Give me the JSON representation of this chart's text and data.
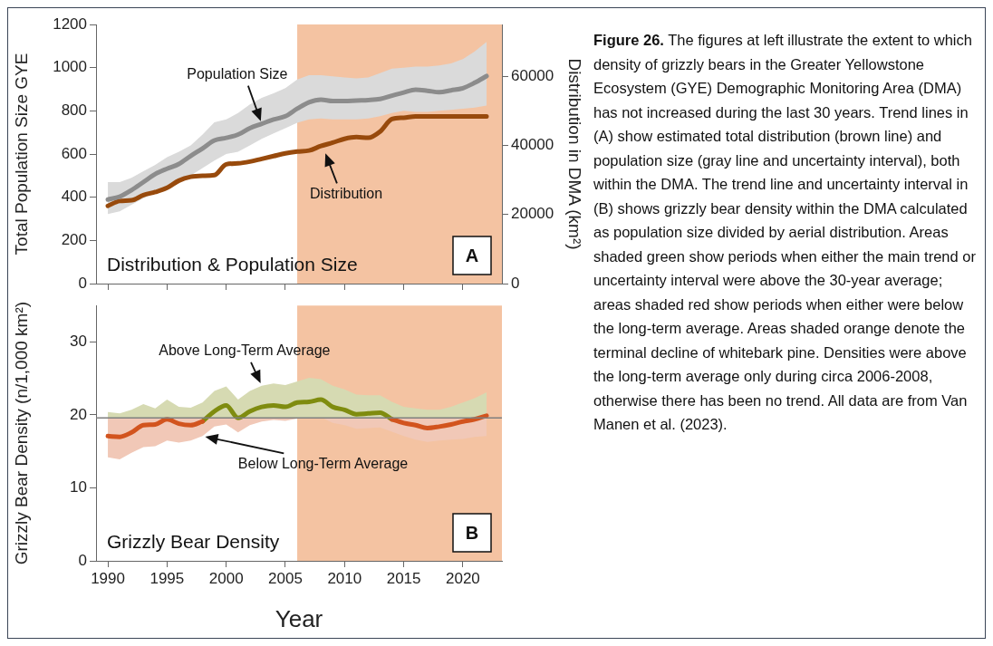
{
  "chart_data": [
    {
      "type": "line",
      "title": "Distribution & Population Size",
      "ylabel": "Total Population Size GYE",
      "y2label": "Distribution in DMA (km²)",
      "x": [
        1990,
        1991,
        1992,
        1993,
        1994,
        1995,
        1996,
        1997,
        1998,
        1999,
        2000,
        2001,
        2002,
        2003,
        2004,
        2005,
        2006,
        2007,
        2008,
        2009,
        2010,
        2011,
        2012,
        2013,
        2014,
        2015,
        2016,
        2017,
        2018,
        2019,
        2020,
        2021,
        2022
      ],
      "xlim": [
        1989,
        2023.3
      ],
      "xticks": [
        1990,
        1995,
        2000,
        2005,
        2010,
        2015,
        2020
      ],
      "ylim": [
        0,
        1200
      ],
      "yticks": [
        0,
        200,
        400,
        600,
        800,
        1000,
        1200
      ],
      "y2lim": [
        0,
        75000
      ],
      "y2ticks": [
        0,
        20000,
        40000,
        60000
      ],
      "tick_labels": "y",
      "series": [
        {
          "color": "#8c8c8c",
          "values": [
            389,
            403,
            433,
            470,
            507,
            532,
            554,
            591,
            626,
            663,
            675,
            690,
            720,
            740,
            760,
            775,
            810,
            840,
            852,
            845,
            845,
            848,
            850,
            855,
            870,
            885,
            898,
            893,
            886,
            895,
            905,
            930,
            961
          ],
          "lower": [
            322,
            335,
            365,
            395,
            425,
            450,
            470,
            500,
            535,
            570,
            600,
            610,
            640,
            670,
            695,
            720,
            745,
            760,
            765,
            760,
            760,
            760,
            765,
            775,
            790,
            800,
            795,
            795,
            800,
            805,
            810,
            815,
            825
          ],
          "upper": [
            470,
            470,
            490,
            520,
            550,
            585,
            610,
            640,
            690,
            747,
            760,
            790,
            830,
            860,
            881,
            905,
            945,
            965,
            965,
            960,
            955,
            950,
            955,
            975,
            995,
            1000,
            1005,
            1005,
            1010,
            1020,
            1040,
            1075,
            1119
          ]
        },
        {
          "color": "#984a0c",
          "axis": "y2",
          "values": [
            22500,
            23900,
            24100,
            25600,
            26500,
            27700,
            29800,
            30900,
            31200,
            31400,
            34500,
            34800,
            35300,
            36100,
            36900,
            37700,
            38200,
            38500,
            39800,
            40800,
            41900,
            42400,
            42200,
            44000,
            47600,
            48000,
            48400,
            48400,
            48400,
            48400,
            48400,
            48400,
            48400
          ]
        }
      ],
      "bands": [
        {
          "axis": "x",
          "from": 2006,
          "to": 2023.3,
          "color": "#f4c3a2"
        }
      ],
      "annotations": [
        {
          "text": "Population Size",
          "x": 2003,
          "y": 740
        },
        {
          "text": "Distribution",
          "x": 2008.3,
          "y": 615
        },
        "A"
      ]
    },
    {
      "type": "line",
      "title": "Grizzly Bear Density",
      "ylabel": "Grizzly Bear Density (n/1,000 km²)",
      "xlabel": "Year",
      "x": [
        1990,
        1991,
        1992,
        1993,
        1994,
        1995,
        1996,
        1997,
        1998,
        1999,
        2000,
        2001,
        2002,
        2003,
        2004,
        2005,
        2006,
        2007,
        2008,
        2009,
        2010,
        2011,
        2012,
        2013,
        2014,
        2015,
        2016,
        2017,
        2018,
        2019,
        2020,
        2021,
        2022
      ],
      "xlim": [
        1989,
        2023.3
      ],
      "xticks": [
        1990,
        1995,
        2000,
        2005,
        2010,
        2015,
        2020
      ],
      "ylim": [
        0,
        35
      ],
      "yticks": [
        0,
        10,
        20,
        30
      ],
      "series": [
        {
          "color": "#d2541e",
          "values": [
            17.1,
            17.0,
            17.6,
            18.6,
            18.7,
            19.4,
            18.8,
            18.6,
            19.1,
            null,
            null,
            null,
            null,
            null,
            null,
            null,
            null,
            null,
            null,
            null,
            null,
            null,
            null,
            null,
            19.4,
            18.9,
            18.6,
            18.2,
            18.4,
            18.7,
            19.1,
            19.4,
            19.9
          ],
          "lower": [
            14.2,
            13.9,
            14.8,
            15.6,
            15.7,
            16.5,
            16.2,
            16.5,
            17.1,
            18.4,
            18.7,
            17.6,
            18.6,
            19.1,
            19.3,
            19.2,
            19.5,
            19.6,
            19.7,
            18.9,
            18.6,
            18.1,
            18.2,
            18.3,
            17.7,
            17.1,
            16.6,
            16.3,
            16.5,
            16.6,
            16.7,
            17.0,
            17.1
          ],
          "upper": [
            19.6,
            19.6,
            19.6,
            19.6,
            19.6,
            19.6,
            19.6,
            19.6,
            19.6,
            19.6,
            19.6,
            19.6,
            19.6,
            19.6,
            19.6,
            19.6,
            19.6,
            19.6,
            19.6,
            19.6,
            19.6,
            19.6,
            19.6,
            19.6,
            19.6,
            19.6,
            19.6,
            19.6,
            19.6,
            19.6,
            19.6,
            19.6,
            19.6
          ]
        },
        {
          "color": "#7f8c0f",
          "values": [
            null,
            null,
            null,
            null,
            null,
            null,
            null,
            null,
            19.1,
            20.5,
            21.3,
            19.6,
            20.5,
            21.1,
            21.3,
            21.1,
            21.7,
            21.8,
            22.1,
            21.1,
            20.7,
            20.1,
            20.2,
            20.3,
            19.4,
            null,
            null,
            null,
            null,
            null,
            null,
            null,
            null
          ],
          "lower": [
            19.6,
            19.6,
            19.6,
            19.6,
            19.6,
            19.6,
            19.6,
            19.6,
            19.6,
            19.6,
            19.6,
            19.6,
            19.6,
            19.6,
            19.6,
            19.6,
            19.6,
            19.6,
            19.6,
            19.6,
            19.6,
            19.6,
            19.6,
            19.6,
            19.6,
            19.6,
            19.6,
            19.6,
            19.6,
            19.6,
            19.6,
            19.6,
            19.6
          ],
          "upper": [
            20.4,
            20.2,
            20.7,
            21.5,
            20.9,
            22.1,
            21.1,
            21.0,
            21.7,
            23.3,
            23.9,
            22.1,
            23.3,
            24.0,
            24.3,
            24.1,
            24.6,
            25.1,
            24.9,
            24.0,
            23.5,
            22.8,
            22.7,
            22.7,
            21.8,
            21.1,
            20.9,
            20.7,
            20.7,
            21.1,
            21.7,
            22.3,
            23.1
          ]
        }
      ],
      "ref_lines": [
        {
          "axis": "y",
          "value": 19.6,
          "color": "#7f7f7f"
        }
      ],
      "bands": [
        {
          "axis": "x",
          "from": 2006,
          "to": 2023.3,
          "color": "#f4c3a2"
        }
      ],
      "annotations": [
        {
          "text": "Above Long-Term Average",
          "x": 2003,
          "y": 24.0
        },
        {
          "text": "Below Long-Term Average",
          "x": 1998,
          "y": 17.1
        },
        "B"
      ]
    },
    {
      "type": "other",
      "title": "Figure 26.",
      "annotations": [
        "The figures at left illustrate the extent to which density of grizzly bears in the Greater Yellowstone Ecosystem (GYE) Demographic Monitoring Area (DMA) has not increased during the last 30 years. Trend lines in (A) show estimated total distribution (brown line) and population size (gray line and uncertainty interval), both within the DMA. The trend line and uncertainty interval in (B) shows grizzly bear density within the DMA calculated as population size divided by aerial distribution. Areas shaded green show periods when either the main trend or uncertainty interval were above the 30-year average; areas shaded red show periods when either were below the long-term average. Areas shaded orange denote the terminal decline of whitebark pine. Densities were above the long-term average only during circa 2006-2008, otherwise there has been no trend. All data are from Van Manen et al. (2023)."
      ]
    }
  ]
}
